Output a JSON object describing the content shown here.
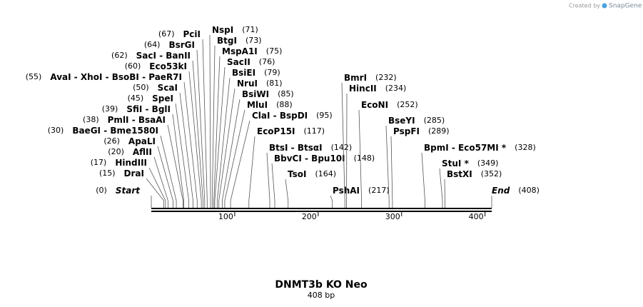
{
  "watermark": "Created by",
  "watermark_brand": "SnapGene",
  "title": "DNMT3b KO Neo",
  "subtitle": "408 bp",
  "ruler": {
    "length": 408,
    "ticks": [
      100,
      200,
      300,
      400
    ]
  },
  "sites": [
    {
      "label": "Start",
      "position": 0,
      "position_label": "(0)",
      "style": "italic"
    },
    {
      "label": "DraI",
      "position": 15,
      "position_label": "(15)"
    },
    {
      "label": "HindIII",
      "position": 17,
      "position_label": "(17)"
    },
    {
      "label": "AflII",
      "position": 20,
      "position_label": "(20)"
    },
    {
      "label": "ApaLI",
      "position": 26,
      "position_label": "(26)"
    },
    {
      "label": "BaeGI - Bme1580I",
      "position": 30,
      "position_label": "(30)"
    },
    {
      "label": "PmlI - BsaAI",
      "position": 38,
      "position_label": "(38)"
    },
    {
      "label": "SfiI - BglI",
      "position": 39,
      "position_label": "(39)"
    },
    {
      "label": "SpeI",
      "position": 45,
      "position_label": "(45)"
    },
    {
      "label": "ScaI",
      "position": 50,
      "position_label": "(50)"
    },
    {
      "label": "AvaI - XhoI - BsoBI - PaeR7I",
      "position": 55,
      "position_label": "(55)"
    },
    {
      "label": "Eco53kI",
      "position": 60,
      "position_label": "(60)"
    },
    {
      "label": "SacI - BanII",
      "position": 62,
      "position_label": "(62)"
    },
    {
      "label": "BsrGI",
      "position": 64,
      "position_label": "(64)"
    },
    {
      "label": "PciI",
      "position": 67,
      "position_label": "(67)"
    },
    {
      "label": "NspI",
      "position": 71,
      "position_label": "(71)"
    },
    {
      "label": "BtgI",
      "position": 73,
      "position_label": "(73)"
    },
    {
      "label": "MspA1I",
      "position": 75,
      "position_label": "(75)"
    },
    {
      "label": "SacII",
      "position": 76,
      "position_label": "(76)"
    },
    {
      "label": "BsiEI",
      "position": 79,
      "position_label": "(79)"
    },
    {
      "label": "NruI",
      "position": 81,
      "position_label": "(81)"
    },
    {
      "label": "BsiWI",
      "position": 85,
      "position_label": "(85)"
    },
    {
      "label": "MluI",
      "position": 88,
      "position_label": "(88)"
    },
    {
      "label": "ClaI - BspDI",
      "position": 95,
      "position_label": "(95)"
    },
    {
      "label": "EcoP15I",
      "position": 117,
      "position_label": "(117)"
    },
    {
      "label": "BtsI - BtsαI",
      "position": 142,
      "position_label": "(142)"
    },
    {
      "label": "BbvCI - Bpu10I",
      "position": 148,
      "position_label": "(148)"
    },
    {
      "label": "TsoI",
      "position": 164,
      "position_label": "(164)"
    },
    {
      "label": "PshAI",
      "position": 217,
      "position_label": "(217)"
    },
    {
      "label": "BmrI",
      "position": 232,
      "position_label": "(232)"
    },
    {
      "label": "HincII",
      "position": 234,
      "position_label": "(234)"
    },
    {
      "label": "EcoNI",
      "position": 252,
      "position_label": "(252)"
    },
    {
      "label": "BseYI",
      "position": 285,
      "position_label": "(285)"
    },
    {
      "label": "PspFI",
      "position": 289,
      "position_label": "(289)"
    },
    {
      "label": "BpmI - Eco57MI *",
      "position": 328,
      "position_label": "(328)"
    },
    {
      "label": "StuI *",
      "position": 349,
      "position_label": "(349)"
    },
    {
      "label": "BstXI",
      "position": 352,
      "position_label": "(352)"
    },
    {
      "label": "End",
      "position": 408,
      "position_label": "(408)",
      "style": "italic"
    }
  ]
}
